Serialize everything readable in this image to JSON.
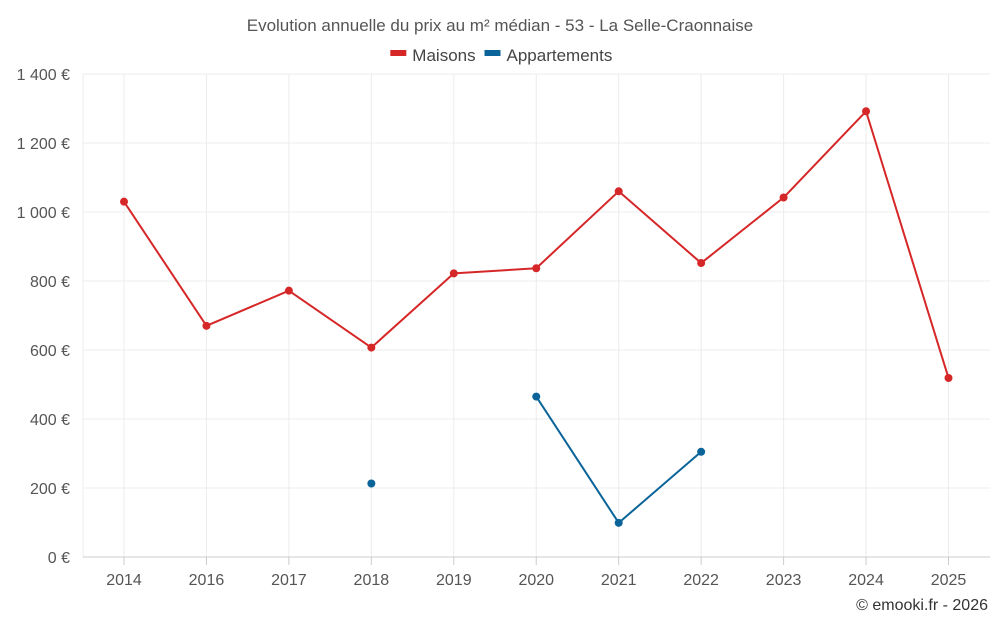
{
  "chart_data": {
    "type": "line",
    "title": "Evolution annuelle du prix au m² médian - 53 - La Selle-Craonnaise",
    "categories": [
      "2014",
      "2016",
      "2017",
      "2018",
      "2019",
      "2020",
      "2021",
      "2022",
      "2023",
      "2024",
      "2025"
    ],
    "series": [
      {
        "name": "Maisons",
        "color": "#d62728",
        "values": [
          1030,
          670,
          772,
          607,
          822,
          837,
          1060,
          852,
          1042,
          1292,
          519
        ]
      },
      {
        "name": "Appartements",
        "color": "#0a6399",
        "values": [
          null,
          null,
          null,
          213,
          null,
          465,
          99,
          305,
          null,
          null,
          null
        ]
      }
    ],
    "ylim": [
      0,
      1400
    ],
    "yticks": [
      0,
      200,
      400,
      600,
      800,
      1000,
      1200,
      1400
    ],
    "ytick_labels": [
      "0 €",
      "200 €",
      "400 €",
      "600 €",
      "800 €",
      "1 000 €",
      "1 200 €",
      "1 400 €"
    ],
    "xlabel": "",
    "ylabel": "",
    "grid": true,
    "legend_position": "top-center"
  },
  "credit": "© emooki.fr - 2026"
}
